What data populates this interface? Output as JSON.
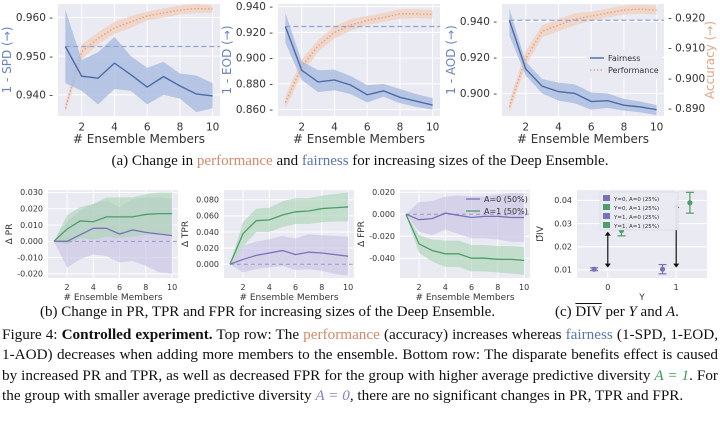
{
  "colors": {
    "fairness": "#4c6aa8",
    "fairness_band": "#a8bbdf",
    "performance": "#e0a58a",
    "performance_band": "#f2cdbb",
    "a0": "#7a72b8",
    "a0_band": "#c4bfe3",
    "a1": "#4f9d68",
    "a1_band": "#a6d3b1",
    "panel_bg": "#eaeaf2",
    "grid": "#ffffff"
  },
  "chart_data": [
    {
      "id": "spd",
      "type": "line",
      "xlabel": "# Ensemble Members",
      "ylabel": "1 - SPD (→)",
      "x": [
        1,
        2,
        3,
        4,
        5,
        6,
        7,
        8,
        9,
        10
      ],
      "xticks": [
        2,
        4,
        6,
        8,
        10
      ],
      "ylim": [
        0.9345,
        0.9635
      ],
      "yticks": [
        0.94,
        0.95,
        0.96
      ],
      "ytick_labels": [
        "0.940",
        "0.950",
        "0.960"
      ],
      "fairness": {
        "name": "Fairness",
        "values": [
          0.9525,
          0.9448,
          0.9443,
          0.9482,
          0.9452,
          0.942,
          0.9447,
          0.9423,
          0.9402,
          0.9397
        ],
        "lower": [
          0.943,
          0.941,
          0.9375,
          0.9415,
          0.941,
          0.9375,
          0.94,
          0.939,
          0.9355,
          0.9365
        ],
        "upper": [
          0.962,
          0.949,
          0.951,
          0.955,
          0.95,
          0.947,
          0.9485,
          0.9455,
          0.945,
          0.943
        ],
        "baseline": 0.9525
      },
      "performance": {
        "name": "Performance",
        "right_ylim": [
          0.887,
          0.9245
        ],
        "values": [
          0.8895,
          0.9085,
          0.913,
          0.9165,
          0.9185,
          0.9205,
          0.9215,
          0.9225,
          0.923,
          0.9228
        ],
        "lower": [
          0.888,
          0.906,
          0.911,
          0.9145,
          0.9165,
          0.919,
          0.92,
          0.921,
          0.9215,
          0.9215
        ],
        "upper": [
          0.891,
          0.911,
          0.915,
          0.9185,
          0.9205,
          0.922,
          0.923,
          0.924,
          0.9245,
          0.924
        ]
      }
    },
    {
      "id": "eod",
      "type": "line",
      "xlabel": "# Ensemble Members",
      "ylabel": "1 - EOD (→)",
      "x": [
        1,
        2,
        3,
        4,
        5,
        6,
        7,
        8,
        9,
        10
      ],
      "xticks": [
        2,
        4,
        6,
        8,
        10
      ],
      "ylim": [
        0.855,
        0.942
      ],
      "yticks": [
        0.86,
        0.88,
        0.9,
        0.92,
        0.94
      ],
      "ytick_labels": [
        "0.860",
        "0.880",
        "0.900",
        "0.920",
        "0.940"
      ],
      "fairness": {
        "name": "Fairness",
        "values": [
          0.9245,
          0.8905,
          0.8815,
          0.883,
          0.879,
          0.8715,
          0.8745,
          0.8695,
          0.8665,
          0.8635
        ],
        "lower": [
          0.912,
          0.883,
          0.8735,
          0.875,
          0.872,
          0.8655,
          0.87,
          0.865,
          0.862,
          0.86
        ],
        "upper": [
          0.935,
          0.8975,
          0.8905,
          0.891,
          0.886,
          0.879,
          0.88,
          0.876,
          0.872,
          0.869
        ],
        "baseline": 0.9245
      },
      "performance": {
        "name": "Performance",
        "right_ylim": [
          0.887,
          0.9245
        ],
        "values": [
          0.8915,
          0.9035,
          0.9105,
          0.915,
          0.9175,
          0.919,
          0.92,
          0.9212,
          0.9212,
          0.921
        ],
        "lower": [
          0.8895,
          0.901,
          0.9085,
          0.913,
          0.9155,
          0.9175,
          0.9185,
          0.9195,
          0.9198,
          0.9195
        ],
        "upper": [
          0.8935,
          0.906,
          0.9125,
          0.917,
          0.9195,
          0.9205,
          0.9215,
          0.9228,
          0.9228,
          0.9225
        ]
      }
    },
    {
      "id": "aod",
      "type": "line",
      "xlabel": "# Ensemble Members",
      "ylabel": "1 - AOD (→)",
      "right_ylabel": "Accuracy (→)",
      "x": [
        1,
        2,
        3,
        4,
        5,
        6,
        7,
        8,
        9,
        10
      ],
      "xticks": [
        2,
        4,
        6,
        8,
        10
      ],
      "ylim": [
        0.8875,
        0.9495
      ],
      "yticks": [
        0.9,
        0.92,
        0.94
      ],
      "ytick_labels": [
        "0.900",
        "0.920",
        "0.940"
      ],
      "right_yticks": [
        0.89,
        0.9,
        0.91,
        0.92
      ],
      "right_ytick_labels": [
        "0.890",
        "0.900",
        "0.910",
        "0.920"
      ],
      "legend": [
        "Fairness",
        "Performance"
      ],
      "legend_loc": "center-right",
      "fairness": {
        "name": "Fairness",
        "values": [
          0.9405,
          0.9135,
          0.904,
          0.901,
          0.9,
          0.8955,
          0.896,
          0.8935,
          0.8925,
          0.891
        ],
        "lower": [
          0.932,
          0.91,
          0.9,
          0.896,
          0.8945,
          0.891,
          0.892,
          0.8905,
          0.8895,
          0.888
        ],
        "upper": [
          0.947,
          0.9175,
          0.908,
          0.906,
          0.905,
          0.9005,
          0.9,
          0.897,
          0.8955,
          0.8935
        ],
        "baseline": 0.9405
      },
      "performance": {
        "name": "Performance",
        "right_ylim": [
          0.8875,
          0.9245
        ],
        "values": [
          0.8905,
          0.9065,
          0.9155,
          0.9175,
          0.9195,
          0.9205,
          0.9215,
          0.9225,
          0.9228,
          0.9225
        ],
        "lower": [
          0.8885,
          0.904,
          0.9135,
          0.9155,
          0.9175,
          0.919,
          0.92,
          0.921,
          0.9213,
          0.921
        ],
        "upper": [
          0.8925,
          0.909,
          0.9175,
          0.9195,
          0.9215,
          0.922,
          0.923,
          0.924,
          0.9243,
          0.924
        ]
      }
    },
    {
      "id": "pr",
      "type": "line",
      "xlabel": "# Ensemble Members",
      "ylabel": "Δ PR",
      "x": [
        1,
        2,
        3,
        4,
        5,
        6,
        7,
        8,
        9,
        10
      ],
      "xticks": [
        2,
        4,
        6,
        8,
        10
      ],
      "ylim": [
        -0.0225,
        0.0315
      ],
      "yticks": [
        -0.02,
        -0.01,
        0.0,
        0.01,
        0.02,
        0.03
      ],
      "ytick_labels": [
        "-0.020",
        "-0.010",
        "0.000",
        "0.010",
        "0.020",
        "0.030"
      ],
      "baseline": 0.0,
      "series": [
        {
          "name": "A=0 (50%)",
          "group": "a0",
          "values": [
            0.0,
            0.0,
            0.004,
            0.008,
            0.008,
            0.0045,
            0.007,
            0.0055,
            0.0045,
            0.0035
          ],
          "lower": [
            0.0,
            -0.016,
            -0.011,
            -0.008,
            -0.009,
            -0.013,
            -0.012,
            -0.015,
            -0.019,
            -0.02
          ],
          "upper": [
            0.0,
            0.012,
            0.019,
            0.023,
            0.025,
            0.021,
            0.026,
            0.027,
            0.027,
            0.026
          ]
        },
        {
          "name": "A=1 (50%)",
          "group": "a1",
          "values": [
            0.0,
            0.0075,
            0.0125,
            0.012,
            0.015,
            0.015,
            0.015,
            0.0165,
            0.017,
            0.017
          ],
          "lower": [
            0.0,
            -0.002,
            0.002,
            0.001,
            0.003,
            0.002,
            0.003,
            0.004,
            0.004,
            0.004
          ],
          "upper": [
            0.0,
            0.016,
            0.021,
            0.023,
            0.027,
            0.027,
            0.027,
            0.029,
            0.03,
            0.03
          ]
        }
      ]
    },
    {
      "id": "tpr",
      "type": "line",
      "xlabel": "# Ensemble Members",
      "ylabel": "Δ TPR",
      "x": [
        1,
        2,
        3,
        4,
        5,
        6,
        7,
        8,
        9,
        10
      ],
      "xticks": [
        2,
        4,
        6,
        8,
        10
      ],
      "ylim": [
        -0.017,
        0.092
      ],
      "yticks": [
        0.0,
        0.02,
        0.04,
        0.06,
        0.08
      ],
      "ytick_labels": [
        "0.000",
        "0.020",
        "0.040",
        "0.060",
        "0.080"
      ],
      "baseline": 0.0,
      "series": [
        {
          "name": "A=0 (50%)",
          "group": "a0",
          "values": [
            0.0,
            0.006,
            0.011,
            0.014,
            0.017,
            0.012,
            0.015,
            0.014,
            0.012,
            0.01
          ],
          "lower": [
            0.0,
            -0.01,
            -0.006,
            -0.004,
            -0.002,
            -0.007,
            -0.006,
            -0.008,
            -0.012,
            -0.014
          ],
          "upper": [
            0.0,
            0.023,
            0.028,
            0.031,
            0.035,
            0.032,
            0.037,
            0.036,
            0.035,
            0.034
          ]
        },
        {
          "name": "A=1 (50%)",
          "group": "a1",
          "values": [
            0.0,
            0.038,
            0.054,
            0.055,
            0.061,
            0.065,
            0.066,
            0.069,
            0.07,
            0.071
          ],
          "lower": [
            0.0,
            0.022,
            0.04,
            0.04,
            0.046,
            0.05,
            0.05,
            0.052,
            0.053,
            0.053
          ],
          "upper": [
            0.0,
            0.052,
            0.069,
            0.07,
            0.078,
            0.082,
            0.082,
            0.085,
            0.087,
            0.089
          ]
        }
      ]
    },
    {
      "id": "fpr",
      "type": "line",
      "xlabel": "# Ensemble Members",
      "ylabel": "Δ FPR",
      "x": [
        1,
        2,
        3,
        4,
        5,
        6,
        7,
        8,
        9,
        10
      ],
      "xticks": [
        2,
        4,
        6,
        8,
        10
      ],
      "ylim": [
        -0.058,
        0.022
      ],
      "yticks": [
        -0.04,
        -0.02,
        0.0,
        0.02
      ],
      "ytick_labels": [
        "-0.040",
        "-0.020",
        "0.000",
        "0.020"
      ],
      "baseline": 0.0,
      "legend": [
        "A=0 (50%)",
        "A=1 (50%)"
      ],
      "legend_loc": "upper-right",
      "series": [
        {
          "name": "A=0 (50%)",
          "group": "a0",
          "values": [
            0.0,
            -0.005,
            -0.004,
            0.001,
            -0.001,
            -0.003,
            -0.002,
            -0.002,
            -0.003,
            -0.003
          ],
          "lower": [
            0.0,
            -0.016,
            -0.019,
            -0.014,
            -0.018,
            -0.022,
            -0.022,
            -0.023,
            -0.025,
            -0.025
          ],
          "upper": [
            0.0,
            0.011,
            0.012,
            0.016,
            0.017,
            0.016,
            0.016,
            0.018,
            0.019,
            0.019
          ]
        },
        {
          "name": "A=1 (50%)",
          "group": "a1",
          "values": [
            0.0,
            -0.027,
            -0.033,
            -0.036,
            -0.036,
            -0.04,
            -0.04,
            -0.041,
            -0.041,
            -0.042
          ],
          "lower": [
            0.0,
            -0.035,
            -0.043,
            -0.048,
            -0.048,
            -0.052,
            -0.052,
            -0.053,
            -0.054,
            -0.055
          ],
          "upper": [
            0.0,
            -0.019,
            -0.023,
            -0.024,
            -0.024,
            -0.028,
            -0.028,
            -0.029,
            -0.029,
            -0.03
          ]
        }
      ]
    },
    {
      "id": "div",
      "type": "scatter",
      "xlabel": "Y",
      "ylabel": "DIV",
      "xticks": [
        0,
        1
      ],
      "ytick_labels": [
        "0.01",
        "0.02",
        "0.03",
        "0.04"
      ],
      "yticks": [
        0.01,
        0.02,
        0.03,
        0.04
      ],
      "ylim": [
        0.0065,
        0.0445
      ],
      "xlim": [
        -0.45,
        1.45
      ],
      "legend_loc": "upper-center",
      "points": [
        {
          "name": "Y=0, A=0 (25%)",
          "group": "a0",
          "x": -0.2,
          "y": 0.0103,
          "err": 0.0006
        },
        {
          "name": "Y=0, A=1 (25%)",
          "group": "a1",
          "x": 0.2,
          "y": 0.027,
          "err": 0.0023
        },
        {
          "name": "Y=1, A=0 (25%)",
          "group": "a0",
          "x": 0.8,
          "y": 0.0103,
          "err": 0.002
        },
        {
          "name": "Y=1, A=1 (25%)",
          "group": "a1",
          "x": 1.2,
          "y": 0.039,
          "err": 0.0045
        }
      ],
      "arrows": [
        {
          "x": 0,
          "from": 0.011,
          "to": 0.0265
        },
        {
          "x": 1,
          "from": 0.011,
          "to": 0.0385
        }
      ]
    }
  ],
  "captions": {
    "a_prefix": "(a) Change in ",
    "a_perf": "performance",
    "a_mid": " and ",
    "a_fair": "fairness",
    "a_suffix": " for increasing sizes of the Deep Ensemble.",
    "b": "(b) Change in PR, TPR and FPR for increasing sizes of the Deep Ensemble.",
    "c_prefix": "(c) ",
    "c_div": "DIV",
    "c_mid": " per ",
    "c_y": "Y",
    "c_and": " and ",
    "c_a": "A",
    "c_end": "."
  },
  "figure_caption": {
    "label": "Figure 4: ",
    "bold": "Controlled experiment.",
    "t1": " Top row: The ",
    "perf": "performance",
    "t2": " (accuracy) increases whereas ",
    "fair": "fairness",
    "t3": " (1-SPD, 1-EOD, 1-AOD) decreases when adding more members to the ensemble.  Bottom row: The disparate benefits effect is caused by increased PR and TPR, as well as decreased FPR for the group with higher average predictive diversity ",
    "a1": "A = 1",
    "t4": ". For the group with smaller average predictive diversity ",
    "a0": "A = 0",
    "t5": ", there are no significant changes in PR, TPR and FPR."
  }
}
